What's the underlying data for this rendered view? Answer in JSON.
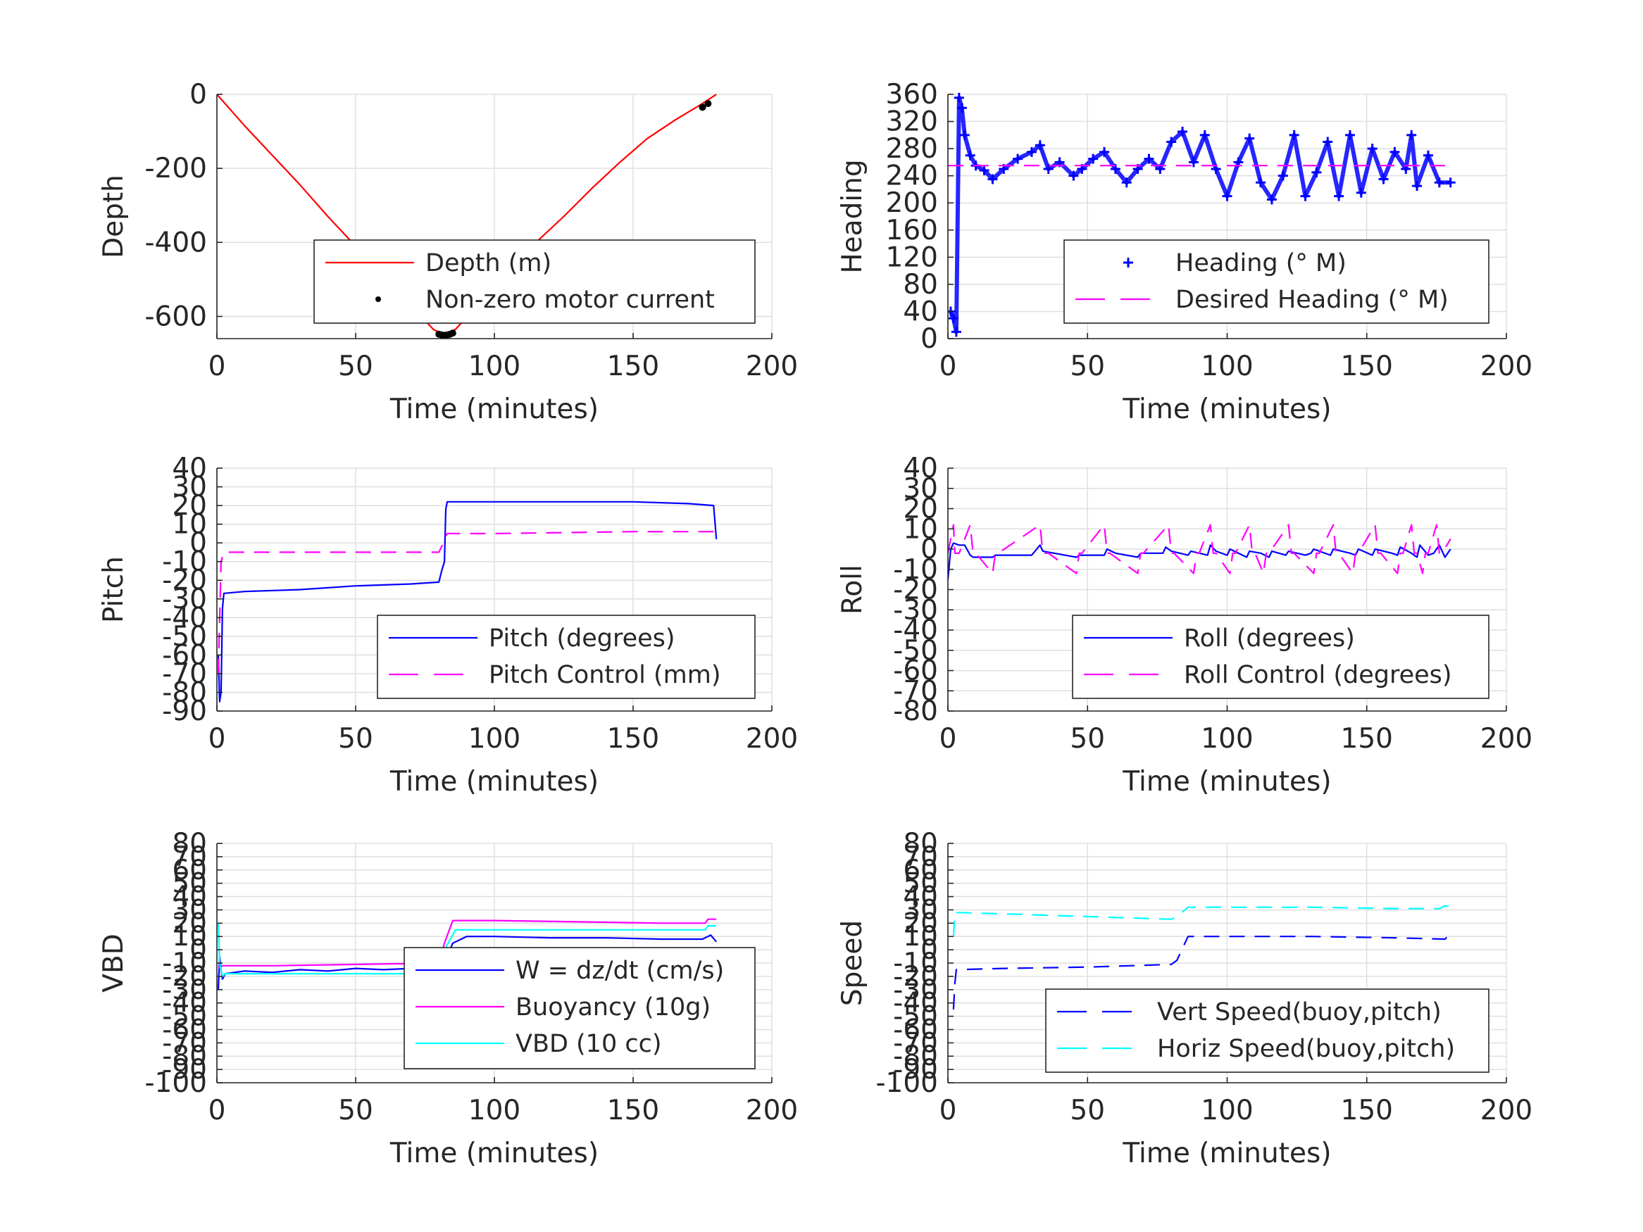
{
  "chart_data": [
    {
      "type": "line",
      "xlabel": "Time (minutes)",
      "ylabel": "Depth",
      "xlim": [
        0,
        200
      ],
      "ylim": [
        -660,
        0
      ],
      "xticks": [
        "0",
        "50",
        "100",
        "150",
        "200"
      ],
      "yticks": [
        "0",
        "-200",
        "-400",
        "-600"
      ],
      "ytick_values": [
        0,
        -200,
        -400,
        -600
      ],
      "grid": true,
      "legend_position": "bottom-right",
      "series": [
        {
          "name": "Depth (m)",
          "style": "line",
          "color": "#ff0000",
          "x": [
            0,
            10,
            20,
            30,
            40,
            50,
            60,
            70,
            78,
            82,
            86,
            95,
            105,
            115,
            125,
            135,
            145,
            155,
            165,
            175,
            180
          ],
          "y": [
            0,
            -85,
            -165,
            -245,
            -330,
            -410,
            -490,
            -570,
            -635,
            -650,
            -635,
            -560,
            -480,
            -400,
            -330,
            -255,
            -185,
            -120,
            -70,
            -25,
            0
          ]
        },
        {
          "name": "Non-zero motor current",
          "style": "dot",
          "color": "#000000",
          "x": [
            80,
            81,
            82,
            83,
            84,
            85,
            175,
            177
          ],
          "y": [
            -648,
            -650,
            -651,
            -650,
            -648,
            -645,
            -35,
            -25
          ]
        }
      ]
    },
    {
      "type": "line",
      "xlabel": "Time (minutes)",
      "ylabel": "Heading",
      "xlim": [
        0,
        200
      ],
      "ylim": [
        0,
        360
      ],
      "xticks": [
        "0",
        "50",
        "100",
        "150",
        "200"
      ],
      "yticks": [
        "0",
        "40",
        "80",
        "120",
        "160",
        "200",
        "240",
        "280",
        "320",
        "360"
      ],
      "ytick_values": [
        0,
        40,
        80,
        120,
        160,
        200,
        240,
        280,
        320,
        360
      ],
      "grid": true,
      "legend_position": "bottom-right",
      "series": [
        {
          "name": "Heading (° M)",
          "style": "plus",
          "color": "#0000ff",
          "x": [
            1,
            2,
            3,
            4,
            5,
            6,
            8,
            10,
            13,
            16,
            20,
            25,
            30,
            33,
            36,
            40,
            45,
            48,
            52,
            56,
            60,
            64,
            68,
            72,
            76,
            80,
            84,
            88,
            92,
            96,
            100,
            104,
            108,
            112,
            116,
            120,
            124,
            128,
            132,
            136,
            140,
            144,
            148,
            152,
            156,
            160,
            164,
            166,
            168,
            172,
            176,
            180
          ],
          "y": [
            40,
            30,
            10,
            355,
            340,
            300,
            270,
            255,
            248,
            235,
            250,
            265,
            275,
            285,
            250,
            260,
            240,
            250,
            265,
            275,
            250,
            230,
            250,
            265,
            250,
            290,
            305,
            260,
            300,
            250,
            210,
            260,
            295,
            230,
            205,
            240,
            300,
            210,
            245,
            290,
            210,
            300,
            215,
            280,
            235,
            275,
            250,
            300,
            225,
            270,
            230,
            230
          ]
        },
        {
          "name": "Desired Heading (° M)",
          "style": "dash",
          "color": "#ff00ff",
          "x": [
            0,
            180
          ],
          "y": [
            255,
            255
          ]
        }
      ]
    },
    {
      "type": "line",
      "xlabel": "Time (minutes)",
      "ylabel": "Pitch",
      "xlim": [
        0,
        200
      ],
      "ylim": [
        -90,
        40
      ],
      "xticks": [
        "0",
        "50",
        "100",
        "150",
        "200"
      ],
      "yticks": [
        "40",
        "30",
        "20",
        "10",
        "0",
        "-10",
        "-20",
        "-30",
        "-40",
        "-50",
        "-60",
        "-70",
        "-80",
        "-90"
      ],
      "ytick_values": [
        40,
        30,
        20,
        10,
        0,
        -10,
        -20,
        -30,
        -40,
        -50,
        -60,
        -70,
        -80,
        -90
      ],
      "grid": true,
      "legend_position": "bottom-right",
      "series": [
        {
          "name": "Pitch (degrees)",
          "style": "line",
          "color": "#0000ff",
          "x": [
            0.5,
            1.0,
            1.5,
            2.0,
            2.5,
            10,
            30,
            50,
            70,
            80,
            81,
            82,
            82.5,
            83,
            90,
            120,
            150,
            170,
            179,
            180
          ],
          "y": [
            -60,
            -85,
            -80,
            -35,
            -27,
            -26,
            -25,
            -23,
            -22,
            -21,
            -15,
            -10,
            18,
            22,
            22,
            22,
            22,
            21,
            20,
            2
          ]
        },
        {
          "name": "Pitch Control (mm)",
          "style": "dash",
          "color": "#ff00ff",
          "x": [
            0.5,
            1.5,
            2.5,
            80,
            81,
            83,
            100,
            150,
            180
          ],
          "y": [
            -70,
            -10,
            -5,
            -5,
            -2,
            5,
            5,
            6,
            6
          ]
        }
      ]
    },
    {
      "type": "line",
      "xlabel": "Time (minutes)",
      "ylabel": "Roll",
      "xlim": [
        0,
        200
      ],
      "ylim": [
        -80,
        40
      ],
      "xticks": [
        "0",
        "50",
        "100",
        "150",
        "200"
      ],
      "yticks": [
        "40",
        "30",
        "20",
        "10",
        "0",
        "-10",
        "-20",
        "-30",
        "-40",
        "-50",
        "-60",
        "-70",
        "-80"
      ],
      "ytick_values": [
        40,
        30,
        20,
        10,
        0,
        -10,
        -20,
        -30,
        -40,
        -50,
        -60,
        -70,
        -80
      ],
      "grid": true,
      "legend_position": "bottom-right",
      "series": [
        {
          "name": "Roll (degrees)",
          "style": "line",
          "color": "#0000ff",
          "x": [
            0,
            1,
            2,
            4,
            6,
            8,
            9,
            16,
            17,
            30,
            33,
            34,
            46,
            47,
            56,
            57,
            60,
            68,
            69,
            77,
            78,
            80,
            86,
            87,
            93,
            94,
            96,
            100,
            101,
            107,
            108,
            112,
            115,
            116,
            121,
            122,
            128,
            130,
            131,
            137,
            138,
            144,
            146,
            147,
            152,
            153,
            159,
            161,
            162,
            166,
            168,
            169,
            172,
            174,
            176,
            178,
            180
          ],
          "y": [
            -15,
            0,
            3,
            2,
            2,
            -3,
            -4,
            -4,
            -3,
            -3,
            2,
            -1,
            -4,
            -3,
            -3,
            0,
            -2,
            -4,
            -2,
            -2,
            1,
            -1,
            -3,
            -1,
            -3,
            2,
            -1,
            -3,
            0,
            -4,
            -1,
            -2,
            -4,
            -1,
            -3,
            -1,
            -3,
            -2,
            0,
            -3,
            0,
            -2,
            -3,
            0,
            -3,
            0,
            -2,
            -3,
            1,
            -2,
            -4,
            2,
            -3,
            -2,
            2,
            -4,
            0
          ]
        },
        {
          "name": "Roll Control (degrees)",
          "style": "dash",
          "color": "#ff00ff",
          "x": [
            0,
            2,
            2.5,
            4,
            8,
            9,
            10,
            16,
            17,
            18,
            33,
            34,
            36,
            46,
            47,
            48,
            56,
            57,
            58,
            68,
            69,
            70,
            79,
            80,
            81,
            88,
            89,
            90,
            94,
            95,
            96,
            101,
            102,
            103,
            108,
            109,
            110,
            113,
            114,
            115,
            122,
            123,
            124,
            131,
            132,
            133,
            138,
            139,
            140,
            145,
            146,
            147,
            153,
            154,
            155,
            161,
            162,
            163,
            166,
            167,
            168,
            170,
            171,
            172,
            175,
            176,
            177,
            180
          ],
          "y": [
            -2,
            12,
            -2,
            -2,
            12,
            -2,
            -2,
            -12,
            -2,
            -2,
            12,
            -2,
            -2,
            -12,
            -2,
            -2,
            12,
            -2,
            -2,
            -12,
            -2,
            -2,
            12,
            -2,
            -2,
            -12,
            -2,
            -2,
            12,
            -2,
            -2,
            -12,
            -2,
            -2,
            12,
            -2,
            -2,
            -12,
            -2,
            -2,
            12,
            -2,
            -2,
            -12,
            -2,
            -2,
            12,
            -2,
            -2,
            -12,
            -2,
            -2,
            12,
            -2,
            -2,
            -12,
            -2,
            -2,
            12,
            -2,
            -2,
            -12,
            -2,
            -2,
            12,
            -2,
            -2,
            5
          ]
        }
      ]
    },
    {
      "type": "line",
      "xlabel": "Time (minutes)",
      "ylabel": "VBD",
      "xlim": [
        0,
        200
      ],
      "ylim": [
        -100,
        80
      ],
      "xticks": [
        "0",
        "50",
        "100",
        "150",
        "200"
      ],
      "yticks": [
        "80",
        "70",
        "60",
        "50",
        "40",
        "30",
        "20",
        "10",
        "0",
        "-10",
        "-20",
        "-30",
        "-40",
        "-50",
        "-60",
        "-70",
        "-80",
        "-90",
        "-100"
      ],
      "ytick_values": [
        80,
        70,
        60,
        50,
        40,
        30,
        20,
        10,
        0,
        -10,
        -20,
        -30,
        -40,
        -50,
        -60,
        -70,
        -80,
        -90,
        -100
      ],
      "grid": true,
      "legend_position": "bottom-right",
      "series": [
        {
          "name": "W = dz/dt (cm/s)",
          "style": "line",
          "color": "#0000ff",
          "x": [
            0.5,
            1,
            1.5,
            2,
            3,
            10,
            20,
            30,
            40,
            50,
            60,
            70,
            80,
            82,
            85,
            90,
            100,
            120,
            140,
            160,
            175,
            178,
            180
          ],
          "y": [
            -30,
            -5,
            -15,
            -22,
            -18,
            -16,
            -17,
            -15,
            -16,
            -14,
            -15,
            -14,
            -13,
            -10,
            5,
            10,
            10,
            9,
            9,
            8,
            8,
            11,
            6
          ]
        },
        {
          "name": "Buoyancy (10g)",
          "style": "line",
          "color": "#ff00ff",
          "x": [
            0.5,
            2,
            20,
            50,
            80,
            82,
            85,
            100,
            130,
            160,
            176,
            177,
            180
          ],
          "y": [
            -14,
            -12,
            -12,
            -11,
            -10,
            5,
            22,
            22,
            21,
            20,
            20,
            23,
            23
          ]
        },
        {
          "name": "VBD (10 cc)",
          "style": "line",
          "color": "#00ffff",
          "x": [
            0.5,
            1,
            2,
            3,
            10,
            40,
            80,
            82,
            86,
            100,
            150,
            176,
            177,
            180
          ],
          "y": [
            20,
            -10,
            -20,
            -18,
            -18,
            -18,
            -18,
            0,
            15,
            15,
            15,
            15,
            18,
            18
          ]
        }
      ]
    },
    {
      "type": "line",
      "xlabel": "Time (minutes)",
      "ylabel": "Speed",
      "xlim": [
        0,
        200
      ],
      "ylim": [
        -100,
        80
      ],
      "xticks": [
        "0",
        "50",
        "100",
        "150",
        "200"
      ],
      "yticks": [
        "80",
        "70",
        "60",
        "50",
        "40",
        "30",
        "20",
        "10",
        "0",
        "-10",
        "-20",
        "-30",
        "-40",
        "-50",
        "-60",
        "-70",
        "-80",
        "-90",
        "-100"
      ],
      "ytick_values": [
        80,
        70,
        60,
        50,
        40,
        30,
        20,
        10,
        0,
        -10,
        -20,
        -30,
        -40,
        -50,
        -60,
        -70,
        -80,
        -90,
        -100
      ],
      "grid": true,
      "legend_position": "bottom-right",
      "series": [
        {
          "name": "Vert Speed(buoy,pitch)",
          "style": "dash",
          "color": "#0000ff",
          "x": [
            2,
            2.5,
            3,
            20,
            50,
            80,
            82,
            86,
            100,
            130,
            160,
            178,
            179,
            180
          ],
          "y": [
            -45,
            -25,
            -15,
            -14,
            -13,
            -11,
            -8,
            10,
            10,
            10,
            9,
            8,
            10,
            9
          ]
        },
        {
          "name": "Horiz Speed(buoy,pitch)",
          "style": "dash",
          "color": "#00ffff",
          "x": [
            2,
            2.5,
            3,
            20,
            50,
            80,
            82,
            86,
            100,
            130,
            160,
            176,
            178,
            180
          ],
          "y": [
            10,
            28,
            28,
            27,
            25,
            23,
            25,
            32,
            32,
            32,
            31,
            31,
            33,
            33
          ]
        }
      ]
    }
  ]
}
